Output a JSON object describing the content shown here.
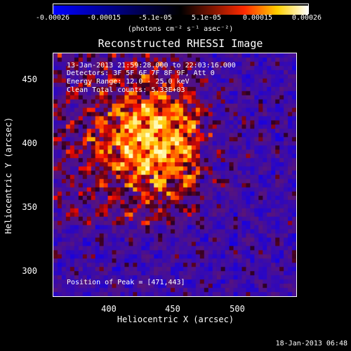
{
  "colorbar": {
    "ticks": [
      "-0.00026",
      "-0.00015",
      "-5.1e-05",
      "5.1e-05",
      "0.00015",
      "0.00026"
    ],
    "units": "(photons cm⁻² s⁻¹ asec⁻²)",
    "colors": [
      "#0000ff",
      "#000000",
      "#ff3000",
      "#ffffff"
    ]
  },
  "title": "Reconstructed RHESSI Image",
  "info": {
    "line1": "13-Jan-2013 21:59:28.000 to 22:03:16.000",
    "line2": "Detectors: 3F 5F 6F 7F 8F 9F, Att 0",
    "line3": "Energy Range: 12.0 - 25.0 keV",
    "line4": "Clean     Total counts: 5.33E+03"
  },
  "peak_text": "Position of Peak = [471,443]",
  "axes": {
    "x_label": "Heliocentric X (arcsec)",
    "y_label": "Heliocentric Y (arcsec)",
    "x_ticks": [
      "400",
      "450",
      "500"
    ],
    "y_ticks": [
      "450",
      "400",
      "350",
      "300"
    ],
    "x_range": [
      358,
      548
    ],
    "y_range": [
      278,
      468
    ]
  },
  "footer_date": "18-Jan-2013 06:48"
}
